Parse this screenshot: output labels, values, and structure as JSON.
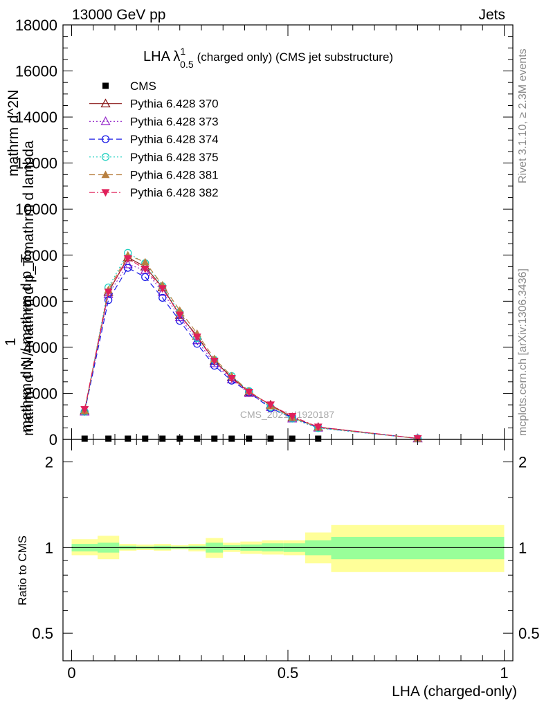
{
  "header": {
    "left": "13000 GeV pp",
    "right": "Jets"
  },
  "side": {
    "rivet": "Rivet 3.1.10, ≥ 2.3M events",
    "mcplots": "mcplots.cern.ch [arXiv:1306.3436]"
  },
  "watermark": "CMS_2021_I1920187",
  "colors": {
    "data": "#000000",
    "band_inner": "#99ff99",
    "band_outer": "#ffff99"
  },
  "chart_data": [
    {
      "type": "line",
      "title": {
        "prefix": "LHA λ",
        "sup": "1",
        "sub": "0.5",
        "suffix": "(charged only) (CMS jet substructure)"
      },
      "ylabel_lines": [
        "mathrm d N / mathrm d p_T mathrm d lambda",
        "mathrm d^2N",
        "1",
        "mathrm d N / mathrm d p_T"
      ],
      "ylim": [
        0,
        18000
      ],
      "xlim": [
        -0.02,
        1.02
      ],
      "yticks": [
        0,
        2000,
        4000,
        6000,
        8000,
        10000,
        12000,
        14000,
        16000,
        18000
      ],
      "ytick_labels": [
        "0",
        "2000",
        "4000",
        "6000",
        "8000",
        "10000",
        "12000",
        "14000",
        "16000",
        "18000"
      ],
      "legend_position": "top-left",
      "x": [
        0.03,
        0.085,
        0.13,
        0.17,
        0.21,
        0.25,
        0.29,
        0.33,
        0.37,
        0.41,
        0.46,
        0.51,
        0.57,
        0.8
      ],
      "series": [
        {
          "name": "CMS",
          "color": "#000000",
          "marker": "square",
          "dash": "",
          "values": [
            30,
            30,
            30,
            30,
            30,
            30,
            30,
            30,
            30,
            30,
            30,
            30,
            30,
            null
          ]
        },
        {
          "name": "Pythia 6.428 370",
          "color": "#8b1a1a",
          "marker": "triangle-open",
          "dash": "",
          "values": [
            1250,
            6400,
            7900,
            7500,
            6600,
            5400,
            4500,
            3400,
            2700,
            2050,
            1500,
            950,
            530,
            40
          ]
        },
        {
          "name": "Pythia 6.428 373",
          "color": "#9932cc",
          "marker": "triangle-open",
          "dash": "2,3",
          "values": [
            1200,
            6300,
            7600,
            7350,
            6400,
            5300,
            4300,
            3300,
            2600,
            2000,
            1400,
            900,
            500,
            40
          ]
        },
        {
          "name": "Pythia 6.428 374",
          "color": "#1a1ae6",
          "marker": "circle-open",
          "dash": "8,5",
          "values": [
            1200,
            6050,
            7450,
            7050,
            6150,
            5150,
            4150,
            3200,
            2550,
            2050,
            1350,
            950,
            510,
            40
          ]
        },
        {
          "name": "Pythia 6.428 375",
          "color": "#20d0c0",
          "marker": "circle-open",
          "dash": "2,3",
          "values": [
            1200,
            6600,
            8100,
            7650,
            6650,
            5500,
            4400,
            3450,
            2750,
            2100,
            1400,
            900,
            490,
            40
          ]
        },
        {
          "name": "Pythia 6.428 381",
          "color": "#b88040",
          "marker": "triangle-filled",
          "dash": "8,5",
          "values": [
            1250,
            6500,
            8000,
            7700,
            6700,
            5600,
            4600,
            3500,
            2750,
            2100,
            1450,
            950,
            520,
            40
          ]
        },
        {
          "name": "Pythia 6.428 382",
          "color": "#e0205a",
          "marker": "triangle-down-filled",
          "dash": "8,3,2,3",
          "values": [
            1300,
            6400,
            7850,
            7400,
            6550,
            5400,
            4450,
            3400,
            2650,
            2050,
            1500,
            1000,
            540,
            40
          ]
        }
      ]
    },
    {
      "type": "area",
      "ylabel": "Ratio to CMS",
      "xlabel": "LHA (charged-only)",
      "xlim": [
        -0.02,
        1.02
      ],
      "ylim_log": [
        0.4,
        2.4
      ],
      "yticks": [
        0.5,
        1,
        2
      ],
      "ytick_labels": [
        "0.5",
        "1",
        "2"
      ],
      "xticks": [
        0,
        0.5,
        1
      ],
      "xtick_labels": [
        "0",
        "0.5",
        "1"
      ],
      "reference": 1,
      "bins": [
        {
          "x0": 0.0,
          "x1": 0.06,
          "inner": [
            0.97,
            1.03
          ],
          "outer": [
            0.94,
            1.07
          ]
        },
        {
          "x0": 0.06,
          "x1": 0.11,
          "inner": [
            0.96,
            1.04
          ],
          "outer": [
            0.91,
            1.1
          ]
        },
        {
          "x0": 0.11,
          "x1": 0.15,
          "inner": [
            0.985,
            1.015
          ],
          "outer": [
            0.975,
            1.03
          ]
        },
        {
          "x0": 0.15,
          "x1": 0.19,
          "inner": [
            0.99,
            1.01
          ],
          "outer": [
            0.98,
            1.025
          ]
        },
        {
          "x0": 0.19,
          "x1": 0.23,
          "inner": [
            0.985,
            1.015
          ],
          "outer": [
            0.975,
            1.03
          ]
        },
        {
          "x0": 0.23,
          "x1": 0.27,
          "inner": [
            0.99,
            1.01
          ],
          "outer": [
            0.985,
            1.02
          ]
        },
        {
          "x0": 0.27,
          "x1": 0.31,
          "inner": [
            0.985,
            1.015
          ],
          "outer": [
            0.97,
            1.03
          ]
        },
        {
          "x0": 0.31,
          "x1": 0.35,
          "inner": [
            0.96,
            1.04
          ],
          "outer": [
            0.92,
            1.08
          ]
        },
        {
          "x0": 0.35,
          "x1": 0.39,
          "inner": [
            0.98,
            1.02
          ],
          "outer": [
            0.965,
            1.04
          ]
        },
        {
          "x0": 0.39,
          "x1": 0.44,
          "inner": [
            0.975,
            1.025
          ],
          "outer": [
            0.95,
            1.05
          ]
        },
        {
          "x0": 0.44,
          "x1": 0.49,
          "inner": [
            0.97,
            1.035
          ],
          "outer": [
            0.945,
            1.06
          ]
        },
        {
          "x0": 0.49,
          "x1": 0.54,
          "inner": [
            0.965,
            1.035
          ],
          "outer": [
            0.94,
            1.06
          ]
        },
        {
          "x0": 0.54,
          "x1": 0.6,
          "inner": [
            0.94,
            1.06
          ],
          "outer": [
            0.88,
            1.13
          ]
        },
        {
          "x0": 0.6,
          "x1": 1.0,
          "inner": [
            0.91,
            1.09
          ],
          "outer": [
            0.82,
            1.2
          ]
        }
      ]
    }
  ]
}
